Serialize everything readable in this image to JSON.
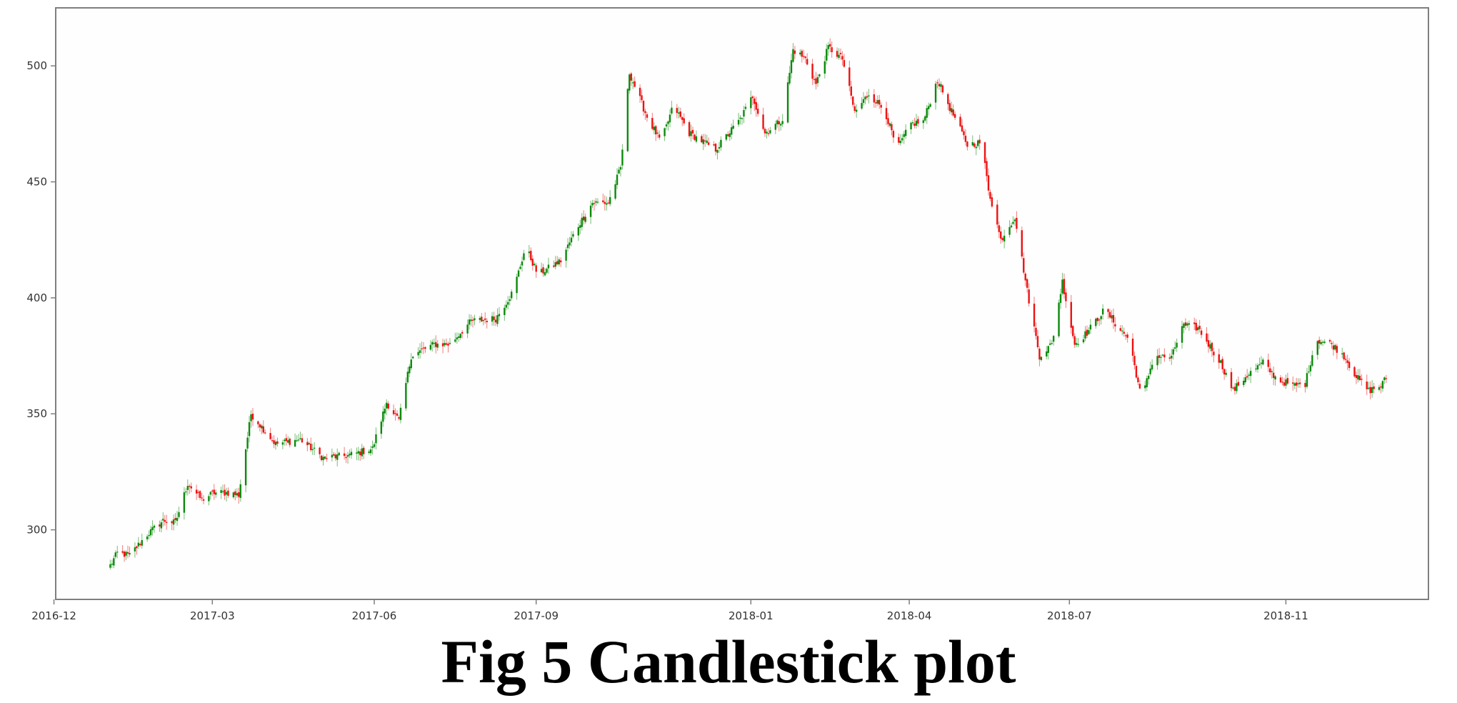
{
  "caption": "Fig 5 Candlestick plot",
  "chart_data": {
    "type": "candlestick",
    "title": "",
    "xlabel": "",
    "ylabel": "",
    "x_range": [
      "2016-12-02",
      "2019-01-21"
    ],
    "ylim": [
      270,
      525
    ],
    "y_ticks": [
      300,
      350,
      400,
      450,
      500
    ],
    "x_ticks": [
      {
        "label": "2016-12",
        "date": "2016-12-01"
      },
      {
        "label": "2017-03",
        "date": "2017-03-01"
      },
      {
        "label": "2017-06",
        "date": "2017-06-01"
      },
      {
        "label": "2017-09",
        "date": "2017-09-01"
      },
      {
        "label": "2018-01",
        "date": "2018-01-01"
      },
      {
        "label": "2018-04",
        "date": "2018-04-01"
      },
      {
        "label": "2018-07",
        "date": "2018-07-01"
      },
      {
        "label": "2018-11",
        "date": "2018-11-01"
      }
    ],
    "close_path": [
      [
        "2016-12-31",
        282
      ],
      [
        "2017-01-06",
        290
      ],
      [
        "2017-01-13",
        289
      ],
      [
        "2017-01-23",
        298
      ],
      [
        "2017-02-01",
        304
      ],
      [
        "2017-02-08",
        303
      ],
      [
        "2017-02-15",
        320
      ],
      [
        "2017-02-23",
        313
      ],
      [
        "2017-03-02",
        316
      ],
      [
        "2017-03-10",
        316
      ],
      [
        "2017-03-16",
        315
      ],
      [
        "2017-03-23",
        350
      ],
      [
        "2017-04-06",
        337
      ],
      [
        "2017-04-20",
        339
      ],
      [
        "2017-05-03",
        331
      ],
      [
        "2017-05-17",
        332
      ],
      [
        "2017-05-31",
        335
      ],
      [
        "2017-06-08",
        355
      ],
      [
        "2017-06-15",
        347
      ],
      [
        "2017-06-22",
        375
      ],
      [
        "2017-07-05",
        380
      ],
      [
        "2017-07-14",
        380
      ],
      [
        "2017-07-26",
        390
      ],
      [
        "2017-08-09",
        391
      ],
      [
        "2017-08-19",
        403
      ],
      [
        "2017-08-26",
        422
      ],
      [
        "2017-09-02",
        410
      ],
      [
        "2017-09-15",
        416
      ],
      [
        "2017-09-24",
        430
      ],
      [
        "2017-10-03",
        441
      ],
      [
        "2017-10-12",
        441
      ],
      [
        "2017-10-19",
        456
      ],
      [
        "2017-10-24",
        497
      ],
      [
        "2017-11-03",
        478
      ],
      [
        "2017-11-11",
        467
      ],
      [
        "2017-11-18",
        483
      ],
      [
        "2017-11-27",
        471
      ],
      [
        "2017-12-12",
        464
      ],
      [
        "2017-12-26",
        477
      ],
      [
        "2018-01-02",
        487
      ],
      [
        "2018-01-09",
        471
      ],
      [
        "2018-01-19",
        477
      ],
      [
        "2018-01-25",
        507
      ],
      [
        "2018-02-01",
        503
      ],
      [
        "2018-02-07",
        492
      ],
      [
        "2018-02-14",
        508
      ],
      [
        "2018-02-22",
        503
      ],
      [
        "2018-03-01",
        480
      ],
      [
        "2018-03-09",
        488
      ],
      [
        "2018-03-18",
        481
      ],
      [
        "2018-03-25",
        464
      ],
      [
        "2018-04-02",
        475
      ],
      [
        "2018-04-09",
        476
      ],
      [
        "2018-04-17",
        494
      ],
      [
        "2018-04-24",
        482
      ],
      [
        "2018-05-04",
        466
      ],
      [
        "2018-05-12",
        467
      ],
      [
        "2018-05-16",
        447
      ],
      [
        "2018-05-23",
        425
      ],
      [
        "2018-05-31",
        435
      ],
      [
        "2018-06-07",
        403
      ],
      [
        "2018-06-14",
        375
      ],
      [
        "2018-06-21",
        380
      ],
      [
        "2018-06-27",
        407
      ],
      [
        "2018-07-04",
        380
      ],
      [
        "2018-07-11",
        385
      ],
      [
        "2018-07-21",
        395
      ],
      [
        "2018-07-28",
        388
      ],
      [
        "2018-08-04",
        382
      ],
      [
        "2018-08-11",
        356
      ],
      [
        "2018-08-18",
        375
      ],
      [
        "2018-08-28",
        374
      ],
      [
        "2018-09-03",
        388
      ],
      [
        "2018-09-12",
        387
      ],
      [
        "2018-09-25",
        372
      ],
      [
        "2018-10-02",
        360
      ],
      [
        "2018-10-09",
        366
      ],
      [
        "2018-10-19",
        372
      ],
      [
        "2018-10-27",
        365
      ],
      [
        "2018-11-05",
        362
      ],
      [
        "2018-11-12",
        363
      ],
      [
        "2018-11-18",
        382
      ],
      [
        "2018-11-27",
        380
      ],
      [
        "2018-12-04",
        375
      ],
      [
        "2018-12-11",
        366
      ],
      [
        "2018-12-18",
        360
      ],
      [
        "2018-12-25",
        362
      ],
      [
        "2018-12-30",
        368
      ]
    ],
    "colors": {
      "up": "#0a8a0a",
      "down": "#ee1111",
      "axes": "#7f7f7f",
      "plot_background": "#fefefe"
    }
  }
}
